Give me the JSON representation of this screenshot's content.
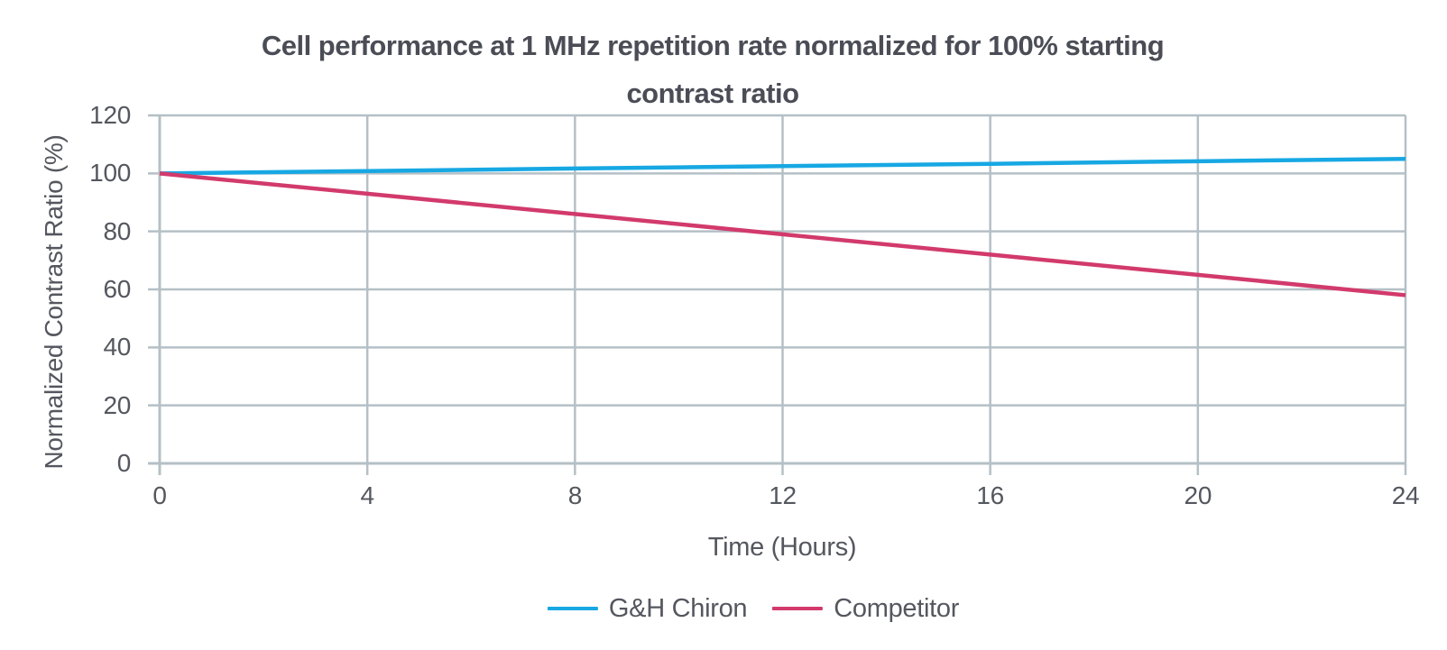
{
  "chart_data": {
    "type": "line",
    "title": "Cell performance at 1 MHz repetition rate normalized for 100% starting contrast ratio",
    "title_lines": [
      "Cell performance at 1 MHz repetition rate normalized for 100% starting",
      "contrast ratio"
    ],
    "xlabel": "Time (Hours)",
    "ylabel": "Normalized Contrast Ratio (%)",
    "x": [
      0,
      4,
      8,
      12,
      16,
      20,
      24
    ],
    "x_ticks": [
      0,
      4,
      8,
      12,
      16,
      20,
      24
    ],
    "y_ticks": [
      0,
      20,
      40,
      60,
      80,
      100,
      120
    ],
    "xlim": [
      0,
      24
    ],
    "ylim": [
      0,
      120
    ],
    "grid": true,
    "legend_position": "bottom",
    "series": [
      {
        "name": "G&H Chiron",
        "color": "#17a8e3",
        "values": [
          100,
          100.8,
          101.7,
          102.5,
          103.3,
          104.2,
          105
        ]
      },
      {
        "name": "Competitor",
        "color": "#d23a6c",
        "values": [
          100,
          93,
          86,
          79,
          72,
          65,
          58
        ]
      }
    ]
  },
  "colors": {
    "grid": "#b5c0c6",
    "axis": "#b5c0c6",
    "text": "#55575f",
    "title": "#4b4d56",
    "background": "#ffffff"
  }
}
